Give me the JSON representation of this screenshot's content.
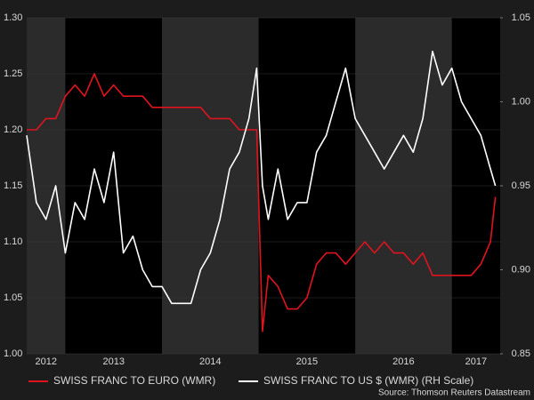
{
  "chart_data": {
    "type": "line",
    "x": [
      2012.6,
      2012.7,
      2012.8,
      2012.9,
      2013.0,
      2013.1,
      2013.2,
      2013.3,
      2013.4,
      2013.5,
      2013.6,
      2013.7,
      2013.8,
      2013.9,
      2014.0,
      2014.1,
      2014.2,
      2014.3,
      2014.4,
      2014.5,
      2014.6,
      2014.7,
      2014.8,
      2014.9,
      2014.98,
      2015.04,
      2015.1,
      2015.2,
      2015.3,
      2015.4,
      2015.5,
      2015.6,
      2015.7,
      2015.8,
      2015.9,
      2016.0,
      2016.1,
      2016.2,
      2016.3,
      2016.4,
      2016.5,
      2016.6,
      2016.7,
      2016.8,
      2016.9,
      2017.0,
      2017.1,
      2017.2,
      2017.3,
      2017.4,
      2017.45
    ],
    "series": [
      {
        "name": "SWISS FRANC TO EURO (WMR)",
        "color": "#e0141e",
        "values": [
          1.2,
          1.2,
          1.21,
          1.21,
          1.23,
          1.24,
          1.23,
          1.25,
          1.23,
          1.24,
          1.23,
          1.23,
          1.23,
          1.22,
          1.22,
          1.22,
          1.22,
          1.22,
          1.22,
          1.21,
          1.21,
          1.21,
          1.2,
          1.2,
          1.2,
          1.02,
          1.07,
          1.06,
          1.04,
          1.04,
          1.05,
          1.08,
          1.09,
          1.09,
          1.08,
          1.09,
          1.1,
          1.09,
          1.1,
          1.09,
          1.09,
          1.08,
          1.09,
          1.07,
          1.07,
          1.07,
          1.07,
          1.07,
          1.08,
          1.1,
          1.14
        ]
      },
      {
        "name": "SWISS FRANC TO US $ (WMR) (RH Scale)",
        "color": "#ffffff",
        "axis": "y2",
        "values": [
          0.98,
          0.94,
          0.93,
          0.95,
          0.91,
          0.94,
          0.93,
          0.96,
          0.94,
          0.97,
          0.91,
          0.92,
          0.9,
          0.89,
          0.89,
          0.88,
          0.88,
          0.88,
          0.9,
          0.91,
          0.93,
          0.96,
          0.97,
          0.99,
          1.02,
          0.95,
          0.93,
          0.96,
          0.93,
          0.94,
          0.94,
          0.97,
          0.98,
          1.0,
          1.02,
          0.99,
          0.98,
          0.97,
          0.96,
          0.97,
          0.98,
          0.97,
          0.99,
          1.03,
          1.01,
          1.02,
          1.0,
          0.99,
          0.98,
          0.96,
          0.95
        ]
      }
    ],
    "xlim": [
      2012.6,
      2017.5
    ],
    "xticks": [
      2012,
      2013,
      2014,
      2015,
      2016,
      2017
    ],
    "ylim": [
      1.0,
      1.3
    ],
    "yticks": [
      {
        "value": 1.0,
        "label": "1.00"
      },
      1.05,
      {
        "value": 1.1,
        "label": "1.10"
      },
      1.15,
      {
        "value": 1.2,
        "label": "1.20"
      },
      1.25,
      {
        "value": 1.3,
        "label": "1.30"
      }
    ],
    "y2lim": [
      0.85,
      1.05
    ],
    "y2ticks": [
      0.85,
      {
        "value": 0.9,
        "label": "0.90"
      },
      0.95,
      {
        "value": 1.0,
        "label": "1.00"
      },
      1.05
    ],
    "grid": true,
    "year_bands": true,
    "source": "Source: Thomson Reuters Datastream"
  }
}
